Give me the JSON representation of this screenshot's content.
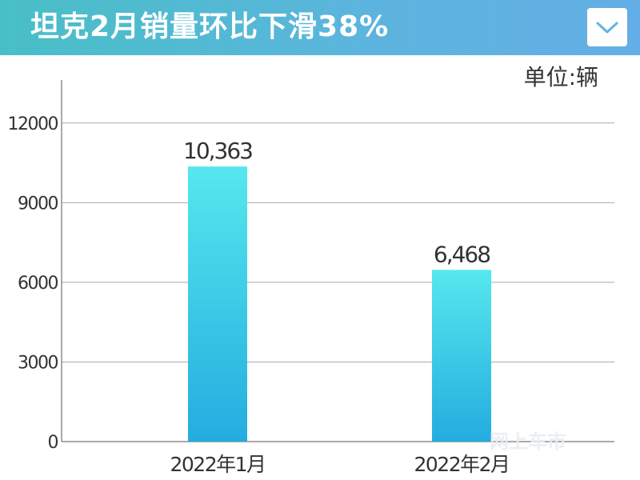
{
  "header": {
    "title": "坦克2月销量环比下滑38%"
  },
  "unit_label": "单位:辆",
  "watermark": "网上车市",
  "colors": {
    "header_start": "#48bfc6",
    "header_end": "#63aee6",
    "bar_top": "#55e8ee",
    "bar_bottom": "#24acdf",
    "gridline": "#a9a9a9",
    "text": "#333333"
  },
  "icons": {
    "collapse": "chevron-down-icon"
  },
  "chart_data": {
    "type": "bar",
    "categories": [
      "2022年1月",
      "2022年2月"
    ],
    "values": [
      10363,
      6468
    ],
    "value_labels": [
      "10,363",
      "6,468"
    ],
    "ylim": [
      0,
      13500
    ],
    "yticks": [
      0,
      3000,
      6000,
      9000,
      12000
    ],
    "grid": true,
    "legend": false
  }
}
